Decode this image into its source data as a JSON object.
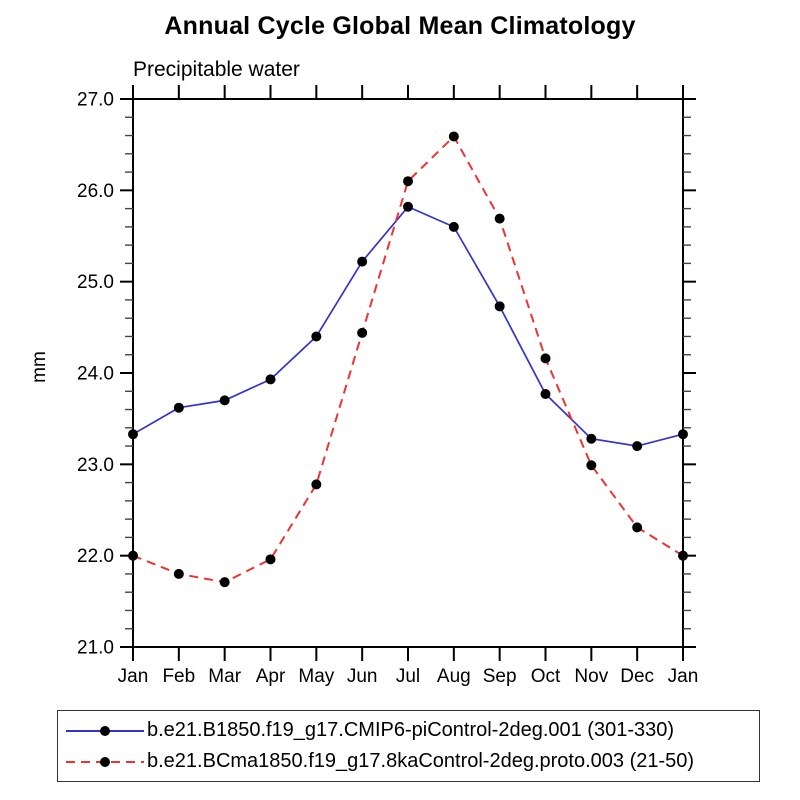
{
  "chart_data": {
    "type": "line",
    "title": "Annual Cycle Global Mean Climatology",
    "subtitle": "Precipitable water",
    "ylabel": "mm",
    "xlabel": "",
    "categories": [
      "Jan",
      "Feb",
      "Mar",
      "Apr",
      "May",
      "Jun",
      "Jul",
      "Aug",
      "Sep",
      "Oct",
      "Nov",
      "Dec",
      "Jan"
    ],
    "ylim": [
      21.0,
      27.0
    ],
    "yticks": [
      21.0,
      22.0,
      23.0,
      24.0,
      25.0,
      26.0,
      27.0
    ],
    "ytick_labels": [
      "21.0",
      "22.0",
      "23.0",
      "24.0",
      "25.0",
      "26.0",
      "27.0"
    ],
    "yminor_step": 0.2,
    "grid": false,
    "legend_position": "bottom-left-box",
    "axis_color": "#000000",
    "marker_shape": "filled-circle",
    "series": [
      {
        "name": "b.e21.B1850.f19_g17.CMIP6-piControl-2deg.001 (301-330)",
        "color": "#3333cc",
        "style": "solid",
        "marker_color": "#000000",
        "values": [
          23.33,
          23.62,
          23.7,
          23.93,
          24.4,
          25.22,
          25.82,
          25.6,
          24.73,
          23.77,
          23.28,
          23.2,
          23.33
        ]
      },
      {
        "name": "b.e21.BCma1850.f19_g17.8kaControl-2deg.proto.003 (21-50)",
        "color": "#ee3333",
        "style": "dashed",
        "marker_color": "#000000",
        "values": [
          22.0,
          21.8,
          21.71,
          21.96,
          22.78,
          24.44,
          26.1,
          26.59,
          25.69,
          24.16,
          22.99,
          22.31,
          22.0
        ]
      }
    ]
  }
}
